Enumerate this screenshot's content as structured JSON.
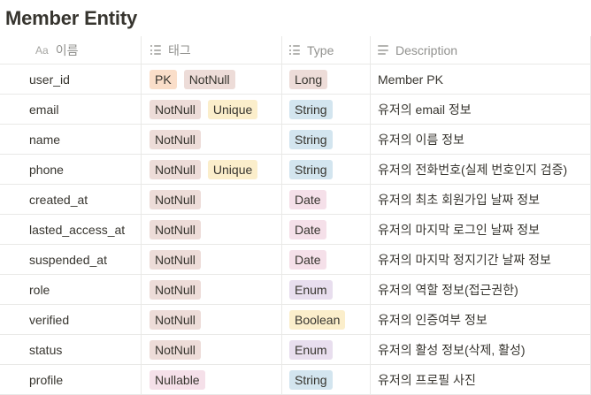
{
  "title": "Member Entity",
  "headers": {
    "name": "이름",
    "tags": "태그",
    "type": "Type",
    "description": "Description"
  },
  "rows": [
    {
      "name": "user_id",
      "tags": [
        {
          "label": "PK",
          "color": "pk"
        },
        {
          "label": "NotNull",
          "color": "nn"
        }
      ],
      "type": {
        "label": "Long",
        "color": "long"
      },
      "description": "Member PK"
    },
    {
      "name": "email",
      "tags": [
        {
          "label": "NotNull",
          "color": "nn"
        },
        {
          "label": "Unique",
          "color": "uq"
        }
      ],
      "type": {
        "label": "String",
        "color": "string"
      },
      "description": "유저의 email 정보"
    },
    {
      "name": "name",
      "tags": [
        {
          "label": "NotNull",
          "color": "nn"
        }
      ],
      "type": {
        "label": "String",
        "color": "string"
      },
      "description": "유저의 이름 정보"
    },
    {
      "name": "phone",
      "tags": [
        {
          "label": "NotNull",
          "color": "nn"
        },
        {
          "label": "Unique",
          "color": "uq"
        }
      ],
      "type": {
        "label": "String",
        "color": "string"
      },
      "description": "유저의 전화번호(실제 번호인지 검증)"
    },
    {
      "name": "created_at",
      "tags": [
        {
          "label": "NotNull",
          "color": "nn"
        }
      ],
      "type": {
        "label": "Date",
        "color": "date"
      },
      "description": "유저의 최초 회원가입 날짜 정보"
    },
    {
      "name": "lasted_access_at",
      "tags": [
        {
          "label": "NotNull",
          "color": "nn"
        }
      ],
      "type": {
        "label": "Date",
        "color": "date"
      },
      "description": "유저의 마지막 로그인 날짜 정보"
    },
    {
      "name": "suspended_at",
      "tags": [
        {
          "label": "NotNull",
          "color": "nn"
        }
      ],
      "type": {
        "label": "Date",
        "color": "date"
      },
      "description": "유저의 마지막 정지기간 날짜 정보"
    },
    {
      "name": "role",
      "tags": [
        {
          "label": "NotNull",
          "color": "nn"
        }
      ],
      "type": {
        "label": "Enum",
        "color": "enum"
      },
      "description": "유저의 역할 정보(접근권한)"
    },
    {
      "name": "verified",
      "tags": [
        {
          "label": "NotNull",
          "color": "nn"
        }
      ],
      "type": {
        "label": "Boolean",
        "color": "boolean"
      },
      "description": "유저의 인증여부 정보"
    },
    {
      "name": "status",
      "tags": [
        {
          "label": "NotNull",
          "color": "nn"
        }
      ],
      "type": {
        "label": "Enum",
        "color": "enum"
      },
      "description": "유저의 활성 정보(삭제, 활성)"
    },
    {
      "name": "profile",
      "tags": [
        {
          "label": "Nullable",
          "color": "nl"
        }
      ],
      "type": {
        "label": "String",
        "color": "string"
      },
      "description": "유저의 프로필 사진"
    }
  ]
}
